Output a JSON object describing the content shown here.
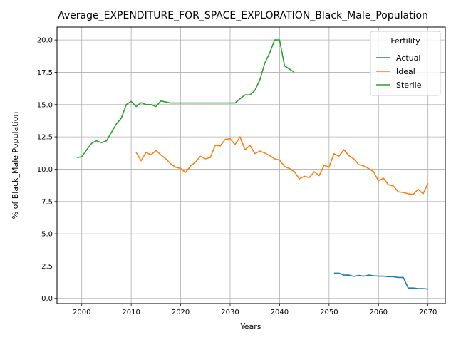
{
  "chart_data": {
    "type": "line",
    "title": "Average_EXPENDITURE_FOR_SPACE_EXPLORATION_Black_Male_Population",
    "xlabel": "Years",
    "ylabel": "% of Black_Male Population",
    "xlim": [
      1995,
      2073.5
    ],
    "ylim": [
      -0.4,
      21.0
    ],
    "xticks": [
      2000,
      2010,
      2020,
      2030,
      2040,
      2050,
      2060,
      2070
    ],
    "yticks": [
      0.0,
      2.5,
      5.0,
      7.5,
      10.0,
      12.5,
      15.0,
      17.5,
      20.0
    ],
    "grid": true,
    "legend": {
      "title": "Fertility",
      "position": "top-right"
    },
    "series": [
      {
        "name": "Actual",
        "color": "#1f77b4",
        "x": [
          2051,
          2052,
          2053,
          2054,
          2055,
          2056,
          2057,
          2058,
          2059,
          2060,
          2061,
          2062,
          2063,
          2064,
          2065,
          2066,
          2067,
          2068,
          2069,
          2070
        ],
        "y": [
          1.95,
          1.95,
          1.8,
          1.8,
          1.7,
          1.78,
          1.72,
          1.8,
          1.75,
          1.72,
          1.72,
          1.68,
          1.68,
          1.62,
          1.62,
          0.8,
          0.8,
          0.76,
          0.76,
          0.72
        ]
      },
      {
        "name": "Ideal",
        "color": "#ff7f0e",
        "x": [
          2011,
          2012,
          2013,
          2014,
          2015,
          2016,
          2017,
          2018,
          2019,
          2020,
          2021,
          2022,
          2023,
          2024,
          2025,
          2026,
          2027,
          2028,
          2029,
          2030,
          2031,
          2032,
          2033,
          2034,
          2035,
          2036,
          2037,
          2038,
          2039,
          2040,
          2041,
          2042,
          2043,
          2044,
          2045,
          2046,
          2047,
          2048,
          2049,
          2050,
          2051,
          2052,
          2053,
          2054,
          2055,
          2056,
          2057,
          2058,
          2059,
          2060,
          2061,
          2062,
          2063,
          2064,
          2065,
          2066,
          2067,
          2068,
          2069,
          2070
        ],
        "y": [
          11.3,
          10.65,
          11.3,
          11.1,
          11.45,
          11.1,
          10.8,
          10.4,
          10.15,
          10.05,
          9.75,
          10.25,
          10.55,
          11.0,
          10.8,
          10.9,
          11.85,
          11.8,
          12.3,
          12.35,
          11.9,
          12.5,
          11.5,
          11.85,
          11.2,
          11.4,
          11.25,
          11.05,
          10.8,
          10.7,
          10.2,
          10.05,
          9.8,
          9.25,
          9.45,
          9.35,
          9.8,
          9.5,
          10.3,
          10.15,
          11.2,
          11.0,
          11.5,
          11.05,
          10.8,
          10.35,
          10.25,
          10.05,
          9.8,
          9.1,
          9.3,
          8.8,
          8.7,
          8.25,
          8.2,
          8.1,
          8.05,
          8.45,
          8.1,
          8.9
        ]
      },
      {
        "name": "Sterile",
        "color": "#2ca02c",
        "x": [
          1999,
          2000,
          2001,
          2002,
          2003,
          2004,
          2005,
          2006,
          2007,
          2008,
          2009,
          2010,
          2011,
          2012,
          2013,
          2014,
          2015,
          2016,
          2017,
          2018,
          2019,
          2020,
          2021,
          2022,
          2023,
          2024,
          2025,
          2026,
          2027,
          2028,
          2029,
          2030,
          2031,
          2032,
          2033,
          2034,
          2035,
          2036,
          2037,
          2038,
          2039,
          2040,
          2041,
          2042,
          2043
        ],
        "y": [
          10.9,
          10.95,
          11.5,
          12.0,
          12.2,
          12.05,
          12.2,
          12.85,
          13.5,
          13.95,
          15.0,
          15.25,
          14.85,
          15.15,
          15.0,
          15.0,
          14.85,
          15.28,
          15.2,
          15.12,
          15.12,
          15.12,
          15.12,
          15.12,
          15.12,
          15.12,
          15.12,
          15.12,
          15.12,
          15.12,
          15.12,
          15.12,
          15.12,
          15.45,
          15.75,
          15.75,
          16.1,
          16.9,
          18.2,
          19.0,
          20.0,
          20.0,
          18.0,
          17.75,
          17.5
        ]
      }
    ]
  }
}
